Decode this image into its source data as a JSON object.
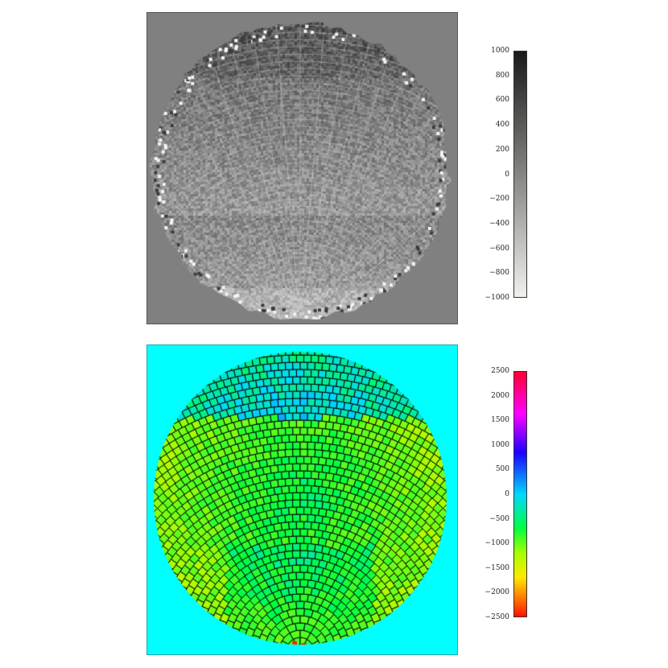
{
  "colors": {
    "top_background": "#808080",
    "bottom_background": "#00ffff"
  },
  "chart_data": [
    {
      "type": "heatmap",
      "title": "",
      "xlabel": "",
      "ylabel": "",
      "colormap": "grayscale (light = low, dark = high)",
      "colorbar": {
        "range": [
          -1000,
          1000
        ],
        "ticks": [
          "1000",
          "800",
          "600",
          "400",
          "200",
          "0",
          "−200",
          "−400",
          "−600",
          "−800",
          "−1000"
        ]
      }
    },
    {
      "type": "heatmap",
      "title": "",
      "xlabel": "",
      "ylabel": "",
      "colormap": "rainbow (red = low, magenta/red = high)",
      "colorbar": {
        "range": [
          -2500,
          2500
        ],
        "ticks": [
          "2500",
          "2000",
          "1500",
          "1000",
          "500",
          "0",
          "−500",
          "−1000",
          "−1500",
          "−2000",
          "−2500"
        ]
      }
    }
  ]
}
